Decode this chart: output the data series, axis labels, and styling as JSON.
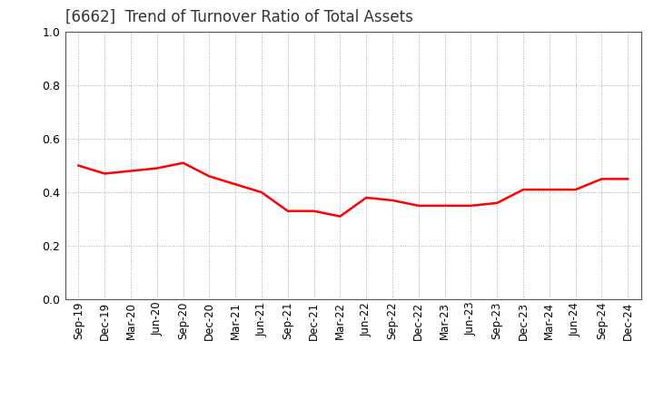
{
  "title": "[6662]  Trend of Turnover Ratio of Total Assets",
  "x_labels": [
    "Sep-19",
    "Dec-19",
    "Mar-20",
    "Jun-20",
    "Sep-20",
    "Dec-20",
    "Mar-21",
    "Jun-21",
    "Sep-21",
    "Dec-21",
    "Mar-22",
    "Jun-22",
    "Sep-22",
    "Dec-22",
    "Mar-23",
    "Jun-23",
    "Sep-23",
    "Dec-23",
    "Mar-24",
    "Jun-24",
    "Sep-24",
    "Dec-24"
  ],
  "y_values": [
    0.5,
    0.47,
    0.48,
    0.49,
    0.51,
    0.46,
    0.43,
    0.4,
    0.33,
    0.33,
    0.31,
    0.38,
    0.37,
    0.35,
    0.35,
    0.35,
    0.36,
    0.41,
    0.41,
    0.41,
    0.45,
    0.45
  ],
  "line_color": "#FF0000",
  "line_width": 1.8,
  "ylim": [
    0.0,
    1.0
  ],
  "yticks": [
    0.0,
    0.2,
    0.4,
    0.6,
    0.8,
    1.0
  ],
  "background_color": "#FFFFFF",
  "grid_color": "#AAAAAA",
  "title_fontsize": 12,
  "tick_fontsize": 8.5,
  "title_color": "#333333"
}
